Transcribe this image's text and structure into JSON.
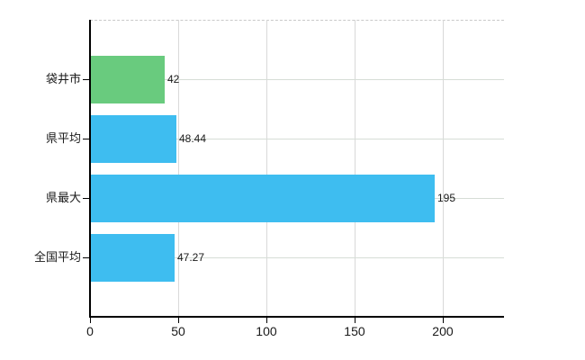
{
  "chart_data": {
    "type": "bar",
    "orientation": "horizontal",
    "title": "",
    "xlabel": "",
    "ylabel": "",
    "categories": [
      "袋井市",
      "県平均",
      "県最大",
      "全国平均"
    ],
    "values": [
      42,
      48.44,
      195,
      47.27
    ],
    "value_labels": [
      "42",
      "48.44",
      "195",
      "47.27"
    ],
    "bar_colors": [
      "#69cb7e",
      "#3ebdf0",
      "#3ebdf0",
      "#3ebdf0"
    ],
    "x_ticks": [
      0,
      50,
      100,
      150,
      200
    ],
    "x_tick_labels": [
      "0",
      "50",
      "100",
      "150",
      "200"
    ],
    "xlim": [
      0,
      234.7
    ],
    "grid": true,
    "legend": false,
    "legend_position": "none"
  },
  "colors": {
    "background": "#ffffff",
    "green_bar": "#69cb7e",
    "blue_bar": "#3ebdf0",
    "axis": "#000000",
    "horizontal_grid": "#d6ddd6",
    "vertical_grid": "#d9d9d9",
    "top_border_dashed": "#c9c9c9",
    "text": "#1a1a1a"
  }
}
